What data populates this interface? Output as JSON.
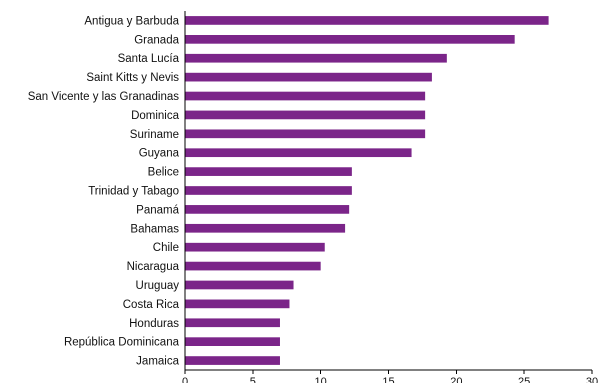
{
  "chart_data": {
    "type": "bar",
    "orientation": "horizontal",
    "title": "",
    "xlabel": "",
    "ylabel": "",
    "categories": [
      "Antigua y Barbuda",
      "Granada",
      "Santa Lucía",
      "Saint Kitts y Nevis",
      "San Vicente y las Granadinas",
      "Dominica",
      "Suriname",
      "Guyana",
      "Belice",
      "Trinidad y Tabago",
      "Panamá",
      "Bahamas",
      "Chile",
      "Nicaragua",
      "Uruguay",
      "Costa Rica",
      "Honduras",
      "República Dominicana",
      "Jamaica"
    ],
    "values": [
      26.8,
      24.3,
      19.3,
      18.2,
      17.7,
      17.7,
      17.7,
      16.7,
      12.3,
      12.3,
      12.1,
      11.8,
      10.3,
      10.0,
      8.0,
      7.7,
      7.0,
      7.0,
      7.0
    ],
    "xlim": [
      0,
      30
    ],
    "xticks": [
      "0",
      "5",
      "10",
      "15",
      "20",
      "25",
      "30"
    ],
    "grid": false,
    "legend": "none",
    "bar_color": "#7b2589"
  }
}
